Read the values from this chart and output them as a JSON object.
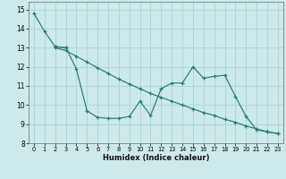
{
  "xlabel": "Humidex (Indice chaleur)",
  "xlim": [
    -0.5,
    23.5
  ],
  "ylim": [
    8,
    15.4
  ],
  "yticks": [
    8,
    9,
    10,
    11,
    12,
    13,
    14,
    15
  ],
  "xticks": [
    0,
    1,
    2,
    3,
    4,
    5,
    6,
    7,
    8,
    9,
    10,
    11,
    12,
    13,
    14,
    15,
    16,
    17,
    18,
    19,
    20,
    21,
    22,
    23
  ],
  "bg_color": "#cceaea",
  "grid_color": "#aad4d4",
  "line_color": "#2a7a6a",
  "lines": [
    {
      "x": [
        0,
        1,
        2,
        3
      ],
      "y": [
        14.8,
        13.85,
        13.05,
        13.0
      ]
    },
    {
      "x": [
        2,
        3,
        4,
        5,
        6,
        7,
        8,
        9,
        10,
        11,
        12,
        13,
        14,
        15,
        16,
        17,
        18,
        19,
        20,
        21,
        22,
        23
      ],
      "y": [
        13.05,
        13.0,
        11.9,
        9.7,
        9.35,
        9.3,
        9.3,
        9.4,
        10.2,
        9.45,
        10.85,
        11.15,
        11.15,
        12.0,
        11.4,
        11.5,
        11.55,
        10.45,
        9.4,
        8.7,
        8.6,
        8.5
      ]
    },
    {
      "x": [
        2,
        3,
        4,
        5,
        6,
        7,
        8,
        9,
        10,
        11,
        12,
        13,
        14,
        15,
        16,
        17,
        18,
        19,
        20,
        21,
        22,
        23
      ],
      "y": [
        13.0,
        12.85,
        12.55,
        12.25,
        11.95,
        11.65,
        11.35,
        11.1,
        10.85,
        10.6,
        10.4,
        10.2,
        10.0,
        9.8,
        9.6,
        9.45,
        9.25,
        9.1,
        8.9,
        8.75,
        8.6,
        8.5
      ]
    }
  ]
}
